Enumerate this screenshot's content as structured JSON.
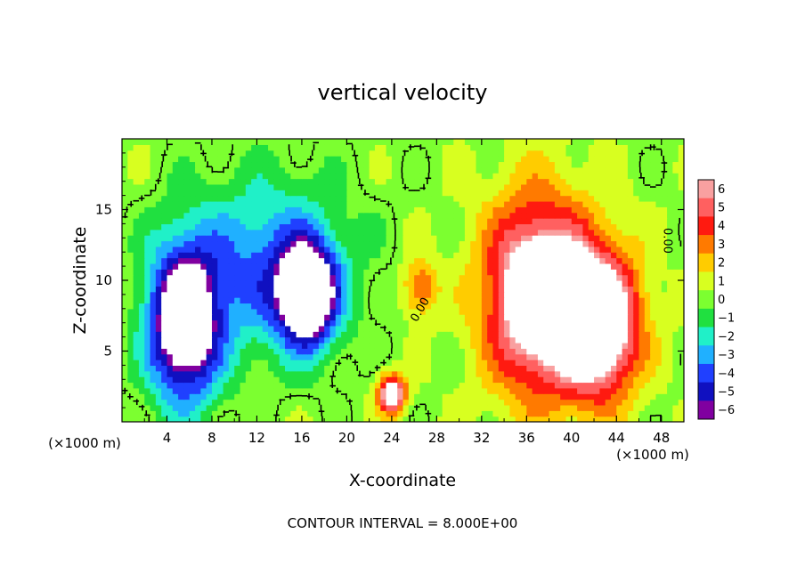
{
  "chart_data": {
    "type": "heatmap",
    "title": "vertical velocity",
    "xlabel": "X-coordinate",
    "ylabel": "Z-coordinate",
    "x_unit_left": "(×1000 m)",
    "x_unit_right": "(×1000 m)",
    "xlim": [
      0,
      50
    ],
    "ylim": [
      0,
      20
    ],
    "x_ticks": [
      4,
      8,
      12,
      16,
      20,
      24,
      28,
      32,
      36,
      40,
      44,
      48
    ],
    "y_ticks": [
      5,
      10,
      15
    ],
    "colorbar": {
      "min": -6,
      "max": 6,
      "tick_labels": [
        "6",
        "5",
        "4",
        "3",
        "2",
        "1",
        "0",
        "−1",
        "−2",
        "−3",
        "−4",
        "−5",
        "−6"
      ],
      "colors": [
        "#f9a0a0",
        "#ff6060",
        "#ff1a10",
        "#ff7a00",
        "#ffcc00",
        "#d8ff20",
        "#7cff30",
        "#20e040",
        "#20f0c8",
        "#20b0ff",
        "#2040ff",
        "#1010c0",
        "#8000a0"
      ]
    },
    "contour_label": "0.00",
    "contour_interval_text": "CONTOUR INTERVAL = 8.000E+00",
    "features": [
      {
        "kind": "downdraft",
        "x": 5.5,
        "z": 7.0,
        "rx": 3.2,
        "rz": 5.5,
        "peak": -9
      },
      {
        "kind": "downdraft",
        "x": 16.5,
        "z": 9.0,
        "rx": 2.5,
        "rz": 3.5,
        "peak": -9
      },
      {
        "kind": "downdraft",
        "x": 13.0,
        "z": 11.0,
        "rx": 7.0,
        "rz": 6.0,
        "peak": -4
      },
      {
        "kind": "updraft",
        "x": 37.0,
        "z": 9.0,
        "rx": 4.5,
        "rz": 6.5,
        "peak": 9
      },
      {
        "kind": "updraft",
        "x": 42.5,
        "z": 7.0,
        "rx": 3.5,
        "rz": 5.0,
        "peak": 9
      },
      {
        "kind": "updraft",
        "x": 24.0,
        "z": 2.0,
        "rx": 1.2,
        "rz": 1.3,
        "peak": 8
      },
      {
        "kind": "updraft",
        "x": 26.5,
        "z": 9.5,
        "rx": 1.5,
        "rz": 2.0,
        "peak": 3.5
      }
    ]
  }
}
